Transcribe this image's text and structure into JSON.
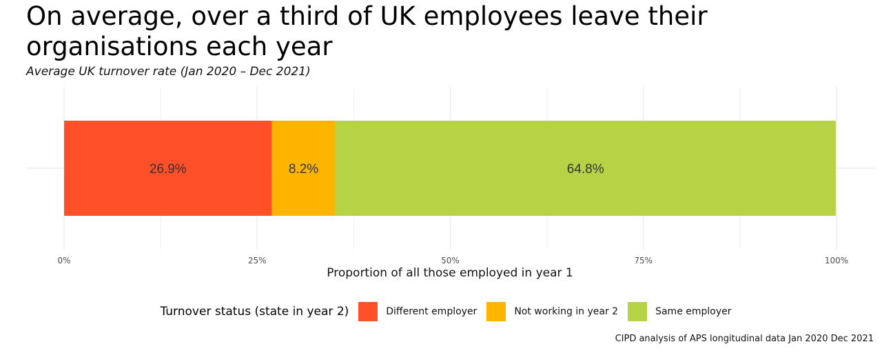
{
  "title": "On average, over a third of UK employees leave their organisations each year",
  "subtitle": "Average UK turnover rate (Jan 2020 – Dec 2021)",
  "caption": "CIPD analysis of APS longitudinal data Jan 2020 Dec 2021",
  "chart_data": {
    "type": "bar",
    "orientation": "horizontal",
    "stacked": true,
    "xlabel": "Proportion of all those employed in year 1",
    "ylabel": "",
    "xlim": [
      0,
      100
    ],
    "x_ticks": [
      "0%",
      "25%",
      "50%",
      "75%",
      "100%"
    ],
    "grid": true,
    "legend_position": "bottom",
    "legend_title": "Turnover status (state in year 2)",
    "series": [
      {
        "name": "Different employer",
        "value": 26.9,
        "label": "26.9%",
        "color": "#FF5029"
      },
      {
        "name": "Not working in year 2",
        "value": 8.2,
        "label": "8.2%",
        "color": "#FFB400"
      },
      {
        "name": "Same employer",
        "value": 64.8,
        "label": "64.8%",
        "color": "#B5D344"
      }
    ]
  }
}
